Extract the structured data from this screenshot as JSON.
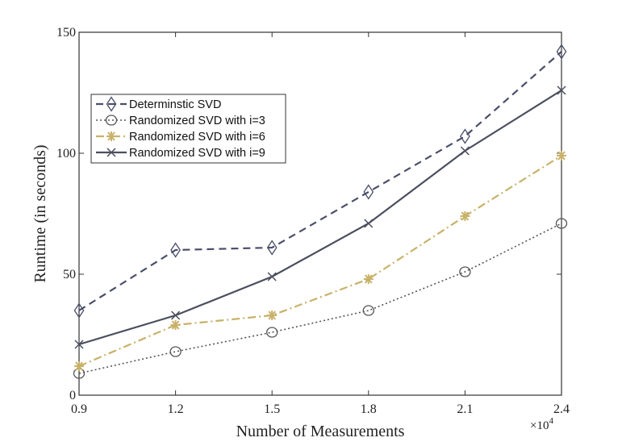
{
  "chart_data": {
    "type": "line",
    "xlabel": "Number of Measurements",
    "ylabel": "Runtime (in seconds)",
    "x": [
      0.9,
      1.2,
      1.5,
      1.8,
      2.1,
      2.4
    ],
    "x_tick_labels": [
      "0.9",
      "1.2",
      "1.5",
      "1.8",
      "2.1",
      "2.4"
    ],
    "x_multiplier_base": "×10",
    "x_multiplier_exp": "4",
    "xlim": [
      0.9,
      2.4
    ],
    "ylim": [
      0,
      150
    ],
    "y_ticks": [
      0,
      50,
      100,
      150
    ],
    "y_tick_labels": [
      "0",
      "50",
      "100",
      "150"
    ],
    "grid": false,
    "legend_position": "upper-left",
    "series": [
      {
        "name": "Determinstic SVD",
        "values": [
          35,
          60,
          61,
          84,
          107,
          142
        ],
        "color": "#4a4e69",
        "marker": "diamond",
        "line_style": "dashed"
      },
      {
        "name": "Randomized SVD with i=3",
        "values": [
          9,
          18,
          26,
          35,
          51,
          71
        ],
        "color": "#555555",
        "marker": "circle",
        "line_style": "dotted"
      },
      {
        "name": "Randomized SVD with i=6",
        "values": [
          12,
          29,
          33,
          48,
          74,
          99
        ],
        "color": "#c8b26a",
        "marker": "asterisk",
        "line_style": "dashdot"
      },
      {
        "name": "Randomized SVD with i=9",
        "values": [
          21,
          33,
          49,
          71,
          101,
          126
        ],
        "color": "#4a4e5e",
        "marker": "x",
        "line_style": "solid"
      }
    ]
  }
}
